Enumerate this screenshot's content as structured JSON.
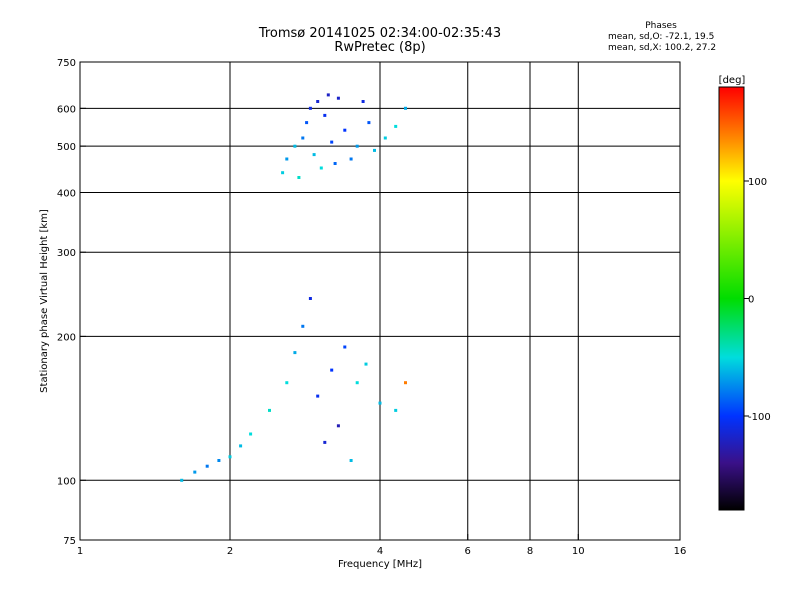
{
  "header": {
    "title_line1": "Tromsø 20141025 02:34:00-02:35:43",
    "title_line2": "RwPretec (8p)",
    "stats_heading": "Phases",
    "stats_line1": "mean, sd,O: -72.1, 19.5",
    "stats_line2": "mean, sd,X: 100.2, 27.2"
  },
  "chart_data": {
    "type": "scatter",
    "title": "Tromsø 20141025 02:34:00-02:35:43",
    "subtitle": "RwPretec (8p)",
    "xlabel": "Frequency [MHz]",
    "ylabel": "Stationary phase Virtual Height [km]",
    "x_scale": "log",
    "y_scale": "log",
    "xlim": [
      1,
      16
    ],
    "ylim": [
      75,
      750
    ],
    "x_ticks": [
      1,
      2,
      4,
      6,
      8,
      10,
      16
    ],
    "x_tick_labels": [
      "1",
      "2",
      "4",
      "6",
      "8",
      "10",
      "16"
    ],
    "x_gridlines": [
      2,
      4,
      6,
      8,
      10
    ],
    "y_ticks": [
      75,
      100,
      200,
      300,
      400,
      500,
      600,
      750
    ],
    "y_tick_labels": [
      "75",
      "100",
      "200",
      "300",
      "400",
      "500",
      "600",
      "750"
    ],
    "y_gridlines": [
      100,
      200,
      300,
      400,
      500,
      600
    ],
    "grid": true,
    "colorbar": {
      "label": "[deg]",
      "range": [
        -180,
        180
      ],
      "tick_values": [
        100,
        0,
        -100
      ],
      "tick_labels": [
        "100",
        "0",
        "-100"
      ],
      "stops": [
        {
          "value": 180,
          "color": "#ff0000"
        },
        {
          "value": 135,
          "color": "#ff8c00"
        },
        {
          "value": 100,
          "color": "#ffff00"
        },
        {
          "value": 0,
          "color": "#00dd00"
        },
        {
          "value": -50,
          "color": "#00dddd"
        },
        {
          "value": -100,
          "color": "#0033ff"
        },
        {
          "value": -140,
          "color": "#3a1088"
        },
        {
          "value": -180,
          "color": "#000000"
        }
      ]
    },
    "series": [
      {
        "values": [
          {
            "x": 2.55,
            "y": 440,
            "phase": -55
          },
          {
            "x": 2.6,
            "y": 470,
            "phase": -70
          },
          {
            "x": 2.7,
            "y": 500,
            "phase": -60
          },
          {
            "x": 2.75,
            "y": 430,
            "phase": -45
          },
          {
            "x": 2.8,
            "y": 520,
            "phase": -80
          },
          {
            "x": 2.85,
            "y": 560,
            "phase": -90
          },
          {
            "x": 2.9,
            "y": 600,
            "phase": -110
          },
          {
            "x": 2.95,
            "y": 480,
            "phase": -60
          },
          {
            "x": 3.0,
            "y": 620,
            "phase": -115
          },
          {
            "x": 3.05,
            "y": 450,
            "phase": -50
          },
          {
            "x": 3.1,
            "y": 580,
            "phase": -105
          },
          {
            "x": 3.15,
            "y": 640,
            "phase": -120
          },
          {
            "x": 3.2,
            "y": 510,
            "phase": -95
          },
          {
            "x": 3.25,
            "y": 460,
            "phase": -85
          },
          {
            "x": 3.3,
            "y": 630,
            "phase": -118
          },
          {
            "x": 3.4,
            "y": 540,
            "phase": -100
          },
          {
            "x": 3.5,
            "y": 470,
            "phase": -80
          },
          {
            "x": 3.6,
            "y": 500,
            "phase": -70
          },
          {
            "x": 3.7,
            "y": 620,
            "phase": -110
          },
          {
            "x": 3.8,
            "y": 560,
            "phase": -90
          },
          {
            "x": 3.9,
            "y": 490,
            "phase": -60
          },
          {
            "x": 4.1,
            "y": 520,
            "phase": -55
          },
          {
            "x": 4.3,
            "y": 550,
            "phase": -50
          },
          {
            "x": 4.5,
            "y": 600,
            "phase": -65
          }
        ]
      },
      {
        "values": [
          {
            "x": 1.6,
            "y": 100,
            "phase": -60
          },
          {
            "x": 1.7,
            "y": 104,
            "phase": -70
          },
          {
            "x": 1.8,
            "y": 107,
            "phase": -80
          },
          {
            "x": 1.9,
            "y": 110,
            "phase": -75
          },
          {
            "x": 2.0,
            "y": 112,
            "phase": -55
          },
          {
            "x": 2.1,
            "y": 118,
            "phase": -60
          },
          {
            "x": 2.2,
            "y": 125,
            "phase": -50
          },
          {
            "x": 2.4,
            "y": 140,
            "phase": -45
          },
          {
            "x": 2.6,
            "y": 160,
            "phase": -50
          },
          {
            "x": 2.7,
            "y": 185,
            "phase": -65
          },
          {
            "x": 2.8,
            "y": 210,
            "phase": -80
          },
          {
            "x": 2.9,
            "y": 240,
            "phase": -110
          },
          {
            "x": 3.0,
            "y": 150,
            "phase": -105
          },
          {
            "x": 3.1,
            "y": 120,
            "phase": -115
          },
          {
            "x": 3.2,
            "y": 170,
            "phase": -100
          },
          {
            "x": 3.3,
            "y": 130,
            "phase": -125
          },
          {
            "x": 3.4,
            "y": 190,
            "phase": -95
          },
          {
            "x": 3.5,
            "y": 110,
            "phase": -60
          },
          {
            "x": 3.6,
            "y": 160,
            "phase": -50
          },
          {
            "x": 3.75,
            "y": 175,
            "phase": -55
          },
          {
            "x": 4.0,
            "y": 145,
            "phase": -60
          },
          {
            "x": 4.3,
            "y": 140,
            "phase": -55
          },
          {
            "x": 4.5,
            "y": 160,
            "phase": 140
          }
        ]
      }
    ]
  }
}
